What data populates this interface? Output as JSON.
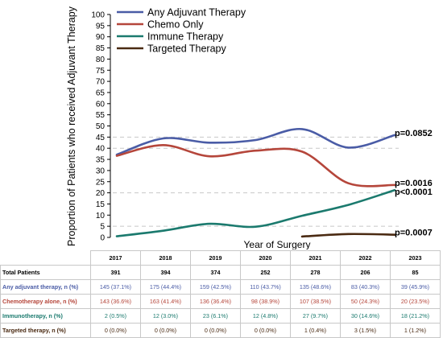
{
  "chart_data": {
    "type": "line",
    "title": "",
    "ylabel": "Proportion of Patients who received Adjuvant Therapy",
    "xlabel": "Year of Surgery",
    "x": [
      2017,
      2018,
      2019,
      2020,
      2021,
      2022,
      2023
    ],
    "ylim": [
      0,
      100
    ],
    "yticks": [
      0,
      5,
      10,
      15,
      20,
      25,
      30,
      35,
      40,
      45,
      50,
      55,
      60,
      65,
      70,
      75,
      80,
      85,
      90,
      95,
      100
    ],
    "reference_lines": [
      5,
      20,
      40,
      45
    ],
    "legend_position": "top-left",
    "series": [
      {
        "name": "Any Adjuvant Therapy",
        "color": "#4a5ca6",
        "values": [
          37.1,
          44.4,
          42.5,
          43.7,
          48.6,
          40.3,
          45.9
        ],
        "p_label": "p=0.0852"
      },
      {
        "name": "Chemo Only",
        "color": "#b5463b",
        "values": [
          36.6,
          41.4,
          36.4,
          38.9,
          38.5,
          24.3,
          23.5
        ],
        "p_label": "p=0.0016"
      },
      {
        "name": "Immune Therapy",
        "color": "#1b7a6e",
        "values": [
          0.5,
          3.0,
          6.1,
          4.8,
          9.7,
          14.6,
          21.2
        ],
        "p_label": "p<0.0001"
      },
      {
        "name": "Targeted Therapy",
        "color": "#4a2a12",
        "values": [
          null,
          null,
          null,
          null,
          0.4,
          1.5,
          1.2
        ],
        "p_label": "p=0.0007"
      }
    ]
  },
  "table": {
    "years": [
      "2017",
      "2018",
      "2019",
      "2020",
      "2021",
      "2022",
      "2023"
    ],
    "rows": [
      {
        "label": "Total Patients",
        "color": "#000000",
        "values": [
          "391",
          "394",
          "374",
          "252",
          "278",
          "206",
          "85"
        ]
      },
      {
        "label": "Any adjuvant therapy, n (%)",
        "color": "#4a5ca6",
        "values": [
          "145 (37.1%)",
          "175 (44.4%)",
          "159 (42.5%)",
          "110 (43.7%)",
          "135 (48.6%)",
          "83 (40.3%)",
          "39 (45.9%)"
        ]
      },
      {
        "label": "Chemotherapy alone, n (%)",
        "color": "#b5463b",
        "values": [
          "143 (36.6%)",
          "163 (41.4%)",
          "136 (36.4%)",
          "98 (38.9%)",
          "107 (38.5%)",
          "50 (24.3%)",
          "20 (23.5%)"
        ]
      },
      {
        "label": "Immunotherapy, n (%)",
        "color": "#1b7a6e",
        "values": [
          "2 (0.5%)",
          "12 (3.0%)",
          "23 (6.1%)",
          "12 (4.8%)",
          "27 (9.7%)",
          "30 (14.6%)",
          "18 (21.2%)"
        ]
      },
      {
        "label": "Targeted therapy, n (%)",
        "color": "#4a2a12",
        "values": [
          "0 (0.0%)",
          "0 (0.0%)",
          "0 (0.0%)",
          "0 (0.0%)",
          "1 (0.4%)",
          "3 (1.5%)",
          "1 (1.2%)"
        ]
      }
    ]
  }
}
